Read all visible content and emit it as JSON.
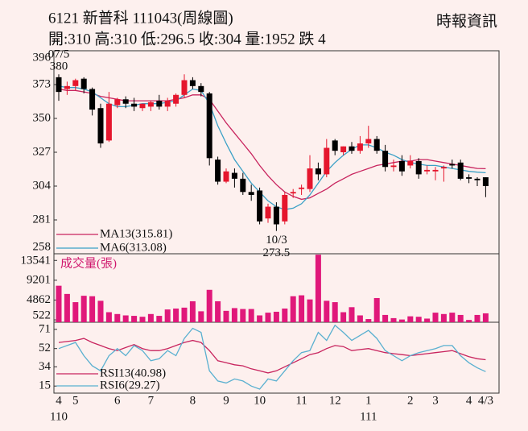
{
  "header": {
    "title": "6121 新普科 111043(周線圖)",
    "quote": "開:310 高:310 低:296.5 收:304 量:1952 跌 4",
    "source": "時報資訊"
  },
  "chart_data": [
    {
      "type": "candlestick",
      "categories": [
        "4",
        null,
        "5",
        null,
        null,
        null,
        null,
        "6",
        null,
        null,
        null,
        "7",
        null,
        null,
        null,
        null,
        "8",
        null,
        null,
        null,
        "9",
        null,
        null,
        null,
        "10",
        null,
        null,
        null,
        null,
        "11",
        null,
        null,
        null,
        "12",
        null,
        null,
        null,
        "1",
        null,
        null,
        null,
        null,
        "2",
        null,
        null,
        "3",
        null,
        null,
        null,
        "4",
        null,
        "4/3"
      ],
      "year_labels": [
        "110",
        null,
        null,
        null,
        null,
        null,
        null,
        null,
        null,
        null,
        null,
        null,
        null,
        null,
        null,
        null,
        null,
        null,
        null,
        null,
        null,
        null,
        null,
        null,
        null,
        null,
        null,
        null,
        null,
        null,
        null,
        null,
        null,
        null,
        null,
        null,
        null,
        "111",
        null,
        null,
        null,
        null,
        null,
        null,
        null,
        null,
        null,
        null,
        null,
        null,
        null,
        null
      ],
      "open": [
        378,
        370,
        372,
        377,
        370,
        357,
        335,
        359,
        363,
        360,
        357,
        358,
        362,
        358,
        360,
        366,
        376,
        372,
        367,
        322,
        307,
        313,
        309,
        300,
        301,
        282,
        290,
        280,
        299,
        302,
        302,
        316,
        312,
        335,
        327,
        331,
        328,
        333,
        336,
        328,
        317,
        321,
        318,
        321,
        314,
        314,
        316,
        319,
        320,
        310,
        309,
        310
      ],
      "high": [
        380,
        375,
        377,
        378,
        371,
        360,
        368,
        364,
        365,
        364,
        360,
        362,
        366,
        364,
        367,
        380,
        378,
        374,
        368,
        324,
        316,
        316,
        313,
        305,
        303,
        292,
        293,
        300,
        302,
        305,
        325,
        320,
        336,
        336,
        331,
        334,
        338,
        345,
        338,
        332,
        322,
        325,
        325,
        323,
        318,
        317,
        318,
        322,
        322,
        312,
        310,
        310
      ],
      "low": [
        362,
        366,
        369,
        367,
        352,
        330,
        334,
        357,
        357,
        355,
        355,
        355,
        356,
        355,
        358,
        364,
        370,
        365,
        318,
        305,
        306,
        303,
        298,
        294,
        278,
        279,
        273.5,
        278,
        296,
        298,
        300,
        308,
        310,
        325,
        325,
        326,
        326,
        330,
        326,
        314,
        314,
        311,
        316,
        309,
        312,
        308,
        307,
        316,
        308,
        306,
        304,
        296.5
      ],
      "close": [
        368,
        372,
        376,
        370,
        356,
        333,
        360,
        363,
        360,
        358,
        360,
        361,
        358,
        362,
        366,
        376,
        372,
        368,
        323,
        307,
        314,
        309,
        300,
        298,
        280,
        290,
        278,
        298,
        300,
        303,
        316,
        312,
        330,
        328,
        331,
        328,
        333,
        336,
        328,
        317,
        318,
        314,
        321,
        312,
        315,
        315,
        317,
        318,
        309,
        309,
        308,
        304
      ],
      "up_color": "#e5162d",
      "down_color": "#000000",
      "overlays": [
        {
          "name": "MA13(315.81)",
          "color": "#c8245e",
          "values": [
            370,
            369,
            369,
            368,
            367,
            365,
            364,
            363,
            362,
            362,
            362,
            362,
            362,
            362,
            363,
            364,
            366,
            366,
            363,
            355,
            347,
            340,
            333,
            326,
            318,
            311,
            305,
            300,
            297,
            295,
            296,
            299,
            302,
            306,
            309,
            312,
            314,
            316,
            318,
            319,
            320,
            321,
            321,
            322,
            322,
            321,
            320,
            319,
            318,
            317,
            316,
            315.81
          ]
        },
        {
          "name": "MA6(313.08)",
          "color": "#3aa0c6",
          "values": [
            372,
            371,
            371,
            370,
            368,
            364,
            360,
            358,
            358,
            359,
            360,
            360,
            360,
            361,
            362,
            366,
            370,
            369,
            360,
            345,
            333,
            322,
            314,
            306,
            300,
            294,
            290,
            288,
            289,
            292,
            298,
            306,
            314,
            320,
            325,
            329,
            332,
            332,
            330,
            327,
            325,
            322,
            320,
            319,
            318,
            318,
            317,
            316,
            315,
            314,
            313.5,
            313.08
          ]
        }
      ],
      "annotations": [
        {
          "date": "07/5",
          "value": 380
        },
        {
          "date": "10/3",
          "value": 273.5
        }
      ],
      "ylim": [
        258,
        396
      ],
      "yticks": [
        258,
        281,
        304,
        327,
        350,
        373,
        396
      ]
    },
    {
      "type": "bar",
      "title": "成交量(張)",
      "color": "#e0187a",
      "values": [
        8000,
        6200,
        4400,
        5800,
        5700,
        4700,
        2200,
        1800,
        1500,
        1400,
        1200,
        1800,
        1400,
        2800,
        3000,
        3200,
        4600,
        2400,
        7100,
        4600,
        2500,
        3100,
        2900,
        2900,
        1500,
        2100,
        2300,
        3000,
        5700,
        5900,
        5000,
        14800,
        4700,
        4400,
        2200,
        3300,
        1500,
        700,
        5300,
        1600,
        900,
        600,
        1300,
        1200,
        800,
        2100,
        1800,
        2100,
        1600,
        500,
        1600,
        1952
      ],
      "ylim": [
        0,
        15000
      ],
      "yticks": [
        522,
        4862,
        9201,
        13541
      ]
    },
    {
      "type": "line",
      "series": [
        {
          "name": "RSI13(40.98)",
          "color": "#c8245e",
          "values": [
            58,
            59,
            60,
            62,
            58,
            55,
            52,
            50,
            53,
            56,
            52,
            50,
            50,
            52,
            55,
            58,
            60,
            58,
            50,
            40,
            38,
            36,
            35,
            32,
            30,
            28,
            30,
            34,
            38,
            42,
            46,
            48,
            52,
            55,
            54,
            50,
            51,
            52,
            50,
            48,
            47,
            46,
            45,
            46,
            47,
            48,
            49,
            50,
            47,
            44,
            42,
            40.98
          ]
        },
        {
          "name": "RSI6(29.27)",
          "color": "#5ab0d0",
          "values": [
            52,
            55,
            58,
            45,
            35,
            30,
            45,
            52,
            45,
            55,
            50,
            40,
            42,
            50,
            45,
            62,
            72,
            68,
            30,
            20,
            18,
            22,
            20,
            15,
            12,
            22,
            20,
            30,
            40,
            48,
            50,
            68,
            60,
            75,
            68,
            60,
            65,
            70,
            62,
            50,
            45,
            40,
            45,
            48,
            50,
            52,
            55,
            55,
            45,
            38,
            33,
            29.27
          ]
        }
      ],
      "ylim": [
        8,
        78
      ],
      "yticks": [
        15,
        34,
        52,
        71
      ]
    }
  ]
}
